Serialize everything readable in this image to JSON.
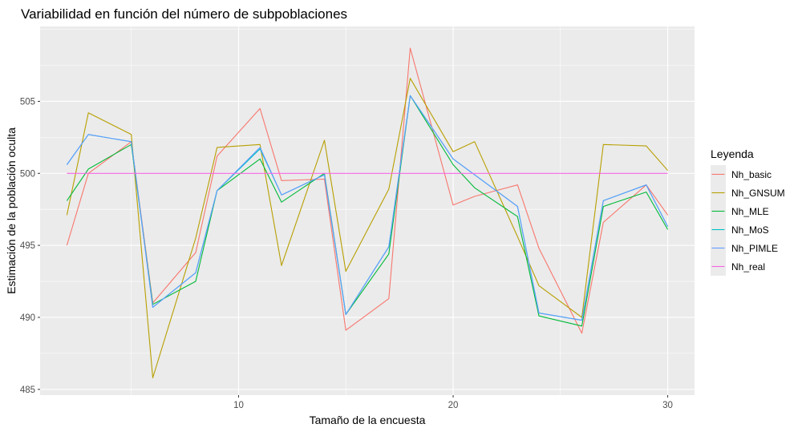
{
  "chart_data": {
    "type": "line",
    "title": "Variabilidad en función del número de subpoblaciones",
    "xlabel": "Tamaño de la encuesta",
    "ylabel": "Estimación de la población oculta",
    "xlim": [
      0.75,
      31.25
    ],
    "ylim": [
      484.6,
      510.2
    ],
    "x_ticks": [
      10,
      20,
      30
    ],
    "y_ticks": [
      485,
      490,
      495,
      500,
      505
    ],
    "grid": true,
    "legend": {
      "title": "Leyenda",
      "position": "right"
    },
    "x": [
      2,
      3,
      5,
      6,
      8,
      9,
      11,
      12,
      14,
      15,
      17,
      18,
      20,
      21,
      23,
      24,
      26,
      27,
      29,
      30
    ],
    "series": [
      {
        "name": "Nh_basic",
        "color": "#F8766D",
        "values": [
          495.0,
          500.0,
          502.2,
          491.0,
          494.5,
          501.2,
          504.5,
          499.5,
          499.6,
          489.1,
          491.3,
          508.7,
          497.8,
          498.4,
          499.2,
          494.8,
          488.9,
          496.6,
          499.2,
          497.1
        ]
      },
      {
        "name": "Nh_GNSUM",
        "color": "#B79F00",
        "values": [
          497.1,
          504.2,
          502.7,
          485.8,
          495.5,
          501.8,
          502.0,
          493.6,
          502.3,
          493.2,
          498.9,
          506.6,
          501.5,
          502.2,
          495.6,
          492.2,
          490.0,
          502.0,
          501.9,
          500.2
        ]
      },
      {
        "name": "Nh_MLE",
        "color": "#00BA38",
        "values": [
          498.1,
          500.3,
          502.0,
          490.9,
          492.5,
          498.8,
          501.0,
          498.0,
          500.0,
          490.2,
          494.4,
          505.4,
          500.6,
          499.0,
          497.0,
          490.1,
          489.4,
          497.7,
          498.7,
          496.1
        ]
      },
      {
        "name": "Nh_MoS",
        "color": "#00BFC4",
        "values": [
          500.6,
          502.7,
          502.2,
          490.7,
          493.1,
          498.8,
          501.7,
          498.5,
          499.9,
          490.2,
          494.9,
          505.4,
          501.0,
          499.9,
          497.7,
          490.3,
          489.8,
          498.1,
          499.2,
          496.3
        ]
      },
      {
        "name": "Nh_PIMLE",
        "color": "#619CFF",
        "values": [
          500.6,
          502.7,
          502.2,
          490.7,
          493.1,
          498.8,
          501.8,
          498.5,
          499.9,
          490.2,
          494.9,
          505.4,
          501.0,
          499.9,
          497.7,
          490.3,
          489.8,
          498.1,
          499.2,
          496.3
        ]
      },
      {
        "name": "Nh_real",
        "color": "#F564E3",
        "values": [
          500,
          500,
          500,
          500,
          500,
          500,
          500,
          500,
          500,
          500,
          500,
          500,
          500,
          500,
          500,
          500,
          500,
          500,
          500,
          500
        ]
      }
    ]
  }
}
